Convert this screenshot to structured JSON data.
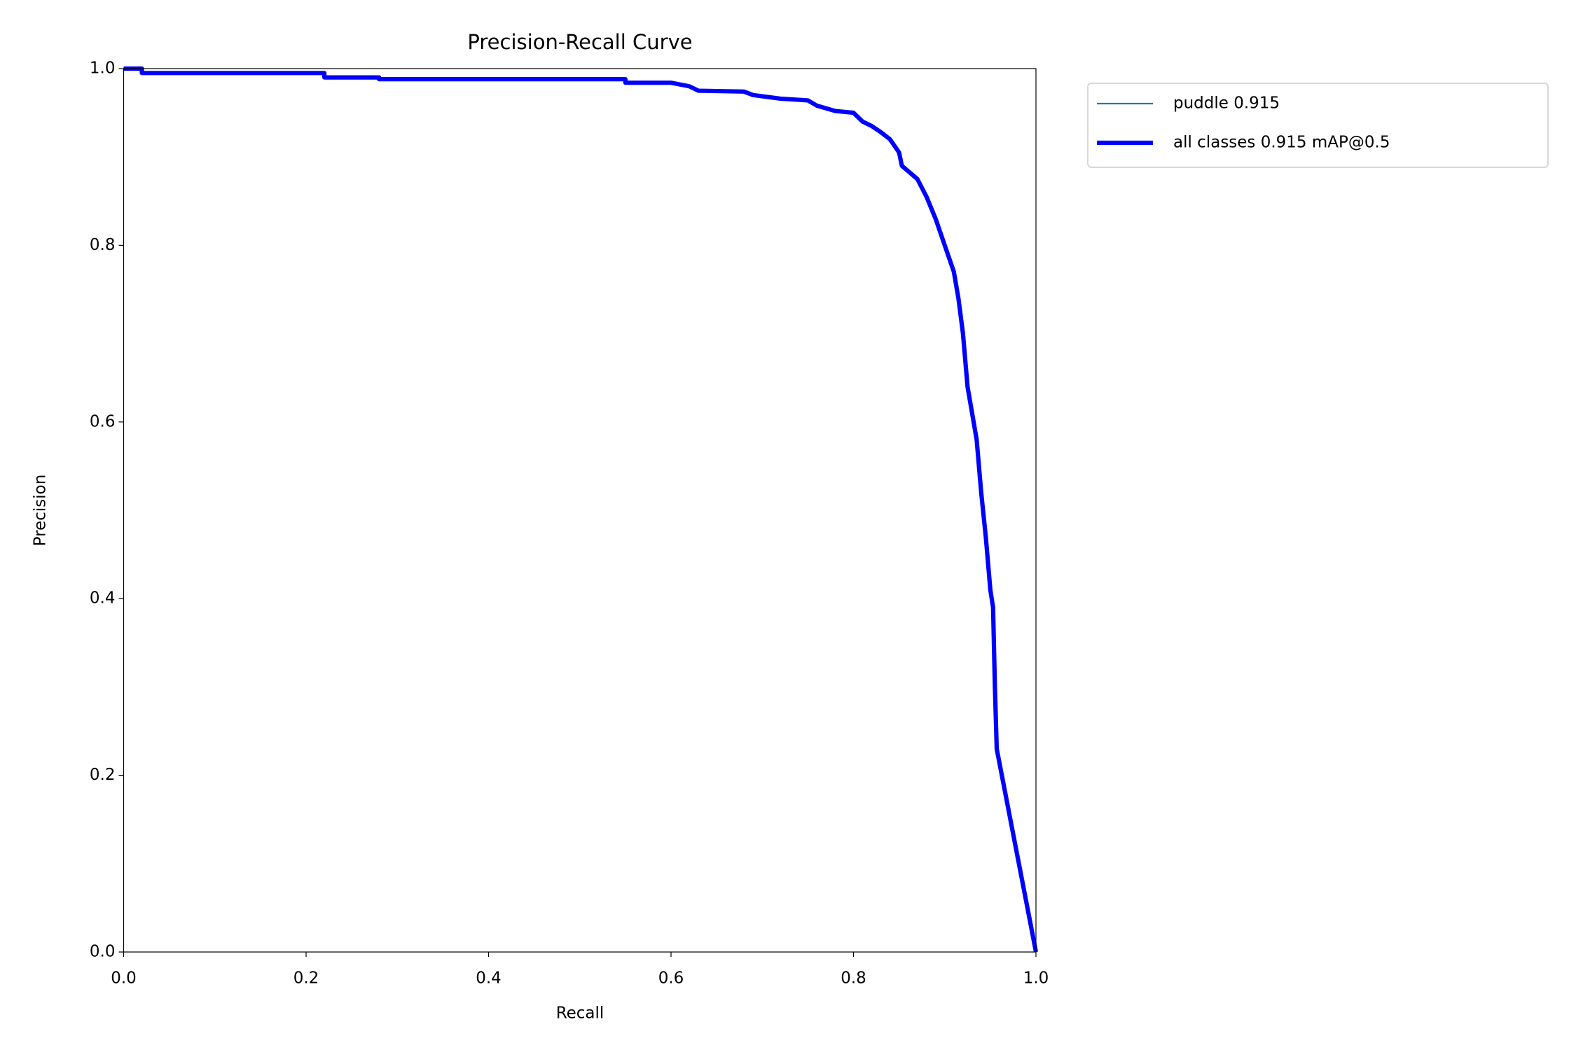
{
  "chart_data": {
    "type": "line",
    "title": "Precision-Recall Curve",
    "x_label": "Recall",
    "y_label": "Precision",
    "x": [
      0,
      0.02,
      0.02,
      0.22,
      0.22,
      0.28,
      0.28,
      0.55,
      0.55,
      0.6,
      0.62,
      0.63,
      0.68,
      0.69,
      0.72,
      0.75,
      0.76,
      0.78,
      0.8,
      0.81,
      0.82,
      0.83,
      0.84,
      0.85,
      0.853,
      0.87,
      0.88,
      0.89,
      0.9,
      0.91,
      0.915,
      0.92,
      0.925,
      0.93,
      0.935,
      0.94,
      0.945,
      0.95,
      0.953,
      0.955,
      0.957,
      1.0
    ],
    "series": [
      {
        "name": "puddle 0.915",
        "color": "#1f77b4",
        "values": [
          1.0,
          1.0,
          0.995,
          0.995,
          0.99,
          0.99,
          0.988,
          0.988,
          0.984,
          0.984,
          0.98,
          0.975,
          0.974,
          0.97,
          0.966,
          0.964,
          0.958,
          0.952,
          0.95,
          0.94,
          0.935,
          0.928,
          0.92,
          0.905,
          0.89,
          0.875,
          0.855,
          0.83,
          0.8,
          0.77,
          0.74,
          0.7,
          0.64,
          0.61,
          0.58,
          0.52,
          0.47,
          0.41,
          0.39,
          0.3,
          0.23,
          0.0
        ]
      },
      {
        "name": "all classes 0.915 mAP@0.5",
        "color": "#0000ff",
        "values": [
          1.0,
          1.0,
          0.995,
          0.995,
          0.99,
          0.99,
          0.988,
          0.988,
          0.984,
          0.984,
          0.98,
          0.975,
          0.974,
          0.97,
          0.966,
          0.964,
          0.958,
          0.952,
          0.95,
          0.94,
          0.935,
          0.928,
          0.92,
          0.905,
          0.89,
          0.875,
          0.855,
          0.83,
          0.8,
          0.77,
          0.74,
          0.7,
          0.64,
          0.61,
          0.58,
          0.52,
          0.47,
          0.41,
          0.39,
          0.3,
          0.23,
          0.0
        ]
      }
    ],
    "xlim": [
      0,
      1
    ],
    "ylim": [
      0,
      1
    ],
    "xticks": [
      {
        "value": 0,
        "label": "0.0"
      },
      0.2,
      0.4,
      0.6,
      0.8,
      {
        "value": 1,
        "label": "1.0"
      }
    ],
    "yticks": [
      {
        "value": 0,
        "label": "0.0"
      },
      0.2,
      0.4,
      0.6,
      0.8,
      {
        "value": 1,
        "label": "1.0"
      }
    ],
    "grid": false,
    "legend": "outside-upper-right"
  }
}
